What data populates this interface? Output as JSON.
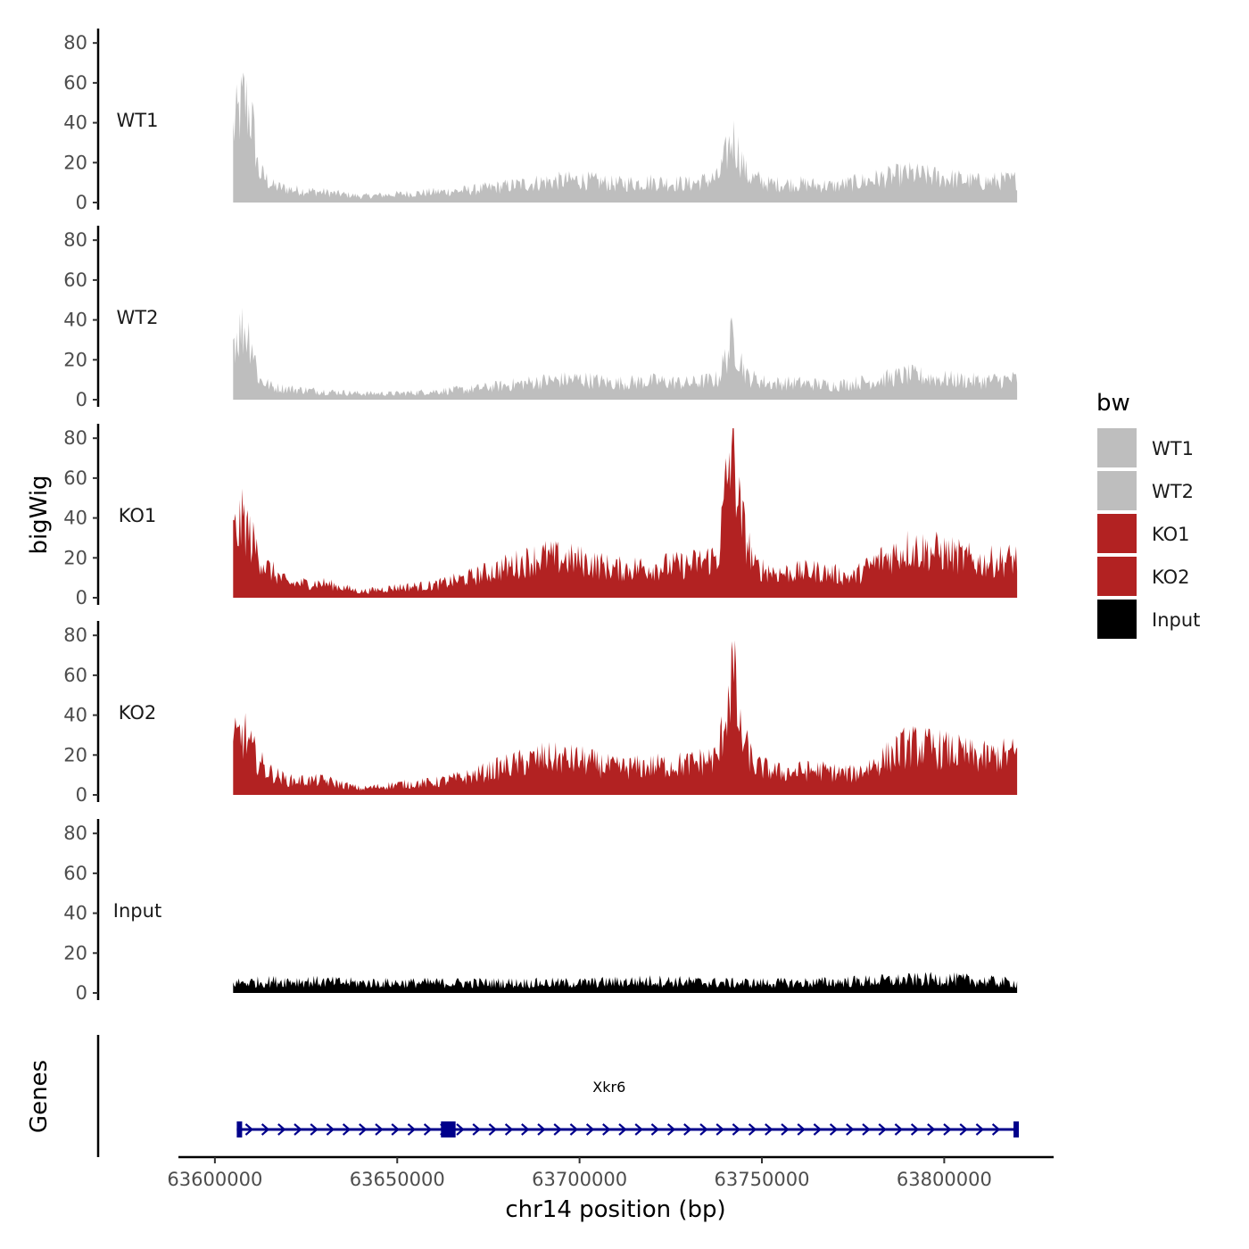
{
  "chart_data": {
    "type": "area",
    "chromosome": "chr14",
    "xlabel": "chr14 position (bp)",
    "ylabel": "bigWig",
    "genes_label": "Genes",
    "xlim": [
      63590000,
      63830000
    ],
    "ylim": [
      0,
      85
    ],
    "x_ticks": [
      63600000,
      63650000,
      63700000,
      63750000,
      63800000
    ],
    "x_tick_labels": [
      "63600000",
      "63650000",
      "63700000",
      "63750000",
      "63800000"
    ],
    "y_ticks": [
      0,
      20,
      40,
      60,
      80
    ],
    "y_tick_labels": [
      "0",
      "20",
      "40",
      "60",
      "80"
    ],
    "legend": {
      "title": "bw",
      "entries": [
        {
          "label": "WT1",
          "color": "#bebebe"
        },
        {
          "label": "WT2",
          "color": "#bebebe"
        },
        {
          "label": "KO1",
          "color": "#b22222"
        },
        {
          "label": "KO2",
          "color": "#b22222"
        },
        {
          "label": "Input",
          "color": "#000000"
        }
      ]
    },
    "tracks": [
      {
        "name": "WT1",
        "color": "#bebebe",
        "x": [
          63605000,
          63608000,
          63610000,
          63612000,
          63616000,
          63622000,
          63630000,
          63640000,
          63650000,
          63660000,
          63670000,
          63680000,
          63690000,
          63700000,
          63710000,
          63720000,
          63730000,
          63738000,
          63742000,
          63746000,
          63752000,
          63760000,
          63770000,
          63780000,
          63790000,
          63800000,
          63810000,
          63820000
        ],
        "values": [
          35,
          50,
          42,
          15,
          8,
          6,
          5,
          3,
          4,
          5,
          6,
          8,
          10,
          11,
          9,
          10,
          9,
          12,
          32,
          13,
          9,
          9,
          8,
          11,
          14,
          12,
          10,
          11
        ]
      },
      {
        "name": "WT2",
        "color": "#bebebe",
        "x": [
          63605000,
          63608000,
          63610000,
          63612000,
          63616000,
          63622000,
          63630000,
          63640000,
          63650000,
          63660000,
          63670000,
          63680000,
          63690000,
          63700000,
          63710000,
          63720000,
          63730000,
          63738000,
          63742000,
          63746000,
          63752000,
          63760000,
          63770000,
          63780000,
          63790000,
          63800000,
          63810000,
          63820000
        ],
        "values": [
          30,
          35,
          30,
          10,
          6,
          5,
          4,
          3,
          3,
          4,
          5,
          7,
          9,
          10,
          8,
          9,
          8,
          10,
          30,
          11,
          8,
          8,
          7,
          9,
          12,
          10,
          9,
          10
        ]
      },
      {
        "name": "KO1",
        "color": "#b22222",
        "x": [
          63605000,
          63608000,
          63610000,
          63614000,
          63620000,
          63630000,
          63640000,
          63650000,
          63660000,
          63670000,
          63680000,
          63690000,
          63700000,
          63710000,
          63720000,
          63730000,
          63738000,
          63742000,
          63744000,
          63748000,
          63755000,
          63765000,
          63775000,
          63782000,
          63790000,
          63800000,
          63810000,
          63820000
        ],
        "values": [
          30,
          38,
          28,
          15,
          7,
          7,
          3,
          5,
          6,
          10,
          15,
          20,
          18,
          14,
          15,
          16,
          20,
          80,
          40,
          15,
          12,
          13,
          10,
          18,
          24,
          22,
          17,
          19
        ]
      },
      {
        "name": "KO2",
        "color": "#b22222",
        "x": [
          63605000,
          63608000,
          63610000,
          63614000,
          63620000,
          63630000,
          63640000,
          63650000,
          63660000,
          63670000,
          63680000,
          63690000,
          63700000,
          63710000,
          63720000,
          63730000,
          63738000,
          63742000,
          63744000,
          63748000,
          63755000,
          63765000,
          63775000,
          63782000,
          63790000,
          63800000,
          63810000,
          63820000
        ],
        "values": [
          25,
          30,
          22,
          12,
          7,
          7,
          3,
          5,
          6,
          9,
          14,
          18,
          17,
          13,
          14,
          15,
          18,
          62,
          30,
          14,
          11,
          12,
          10,
          16,
          24,
          22,
          18,
          20
        ]
      },
      {
        "name": "Input",
        "color": "#000000",
        "x": [
          63605000,
          63620000,
          63640000,
          63660000,
          63680000,
          63700000,
          63720000,
          63740000,
          63760000,
          63780000,
          63800000,
          63820000
        ],
        "values": [
          5,
          6,
          5,
          5,
          5,
          5,
          6,
          5,
          5,
          6,
          7,
          5
        ]
      }
    ],
    "genes": [
      {
        "name": "Xkr6",
        "strand": "+",
        "start": 63606000,
        "end": 63820000,
        "color": "#00008b",
        "exons": [
          [
            63606000,
            63607000
          ],
          [
            63662000,
            63666000
          ],
          [
            63819000,
            63820000
          ]
        ]
      }
    ]
  }
}
